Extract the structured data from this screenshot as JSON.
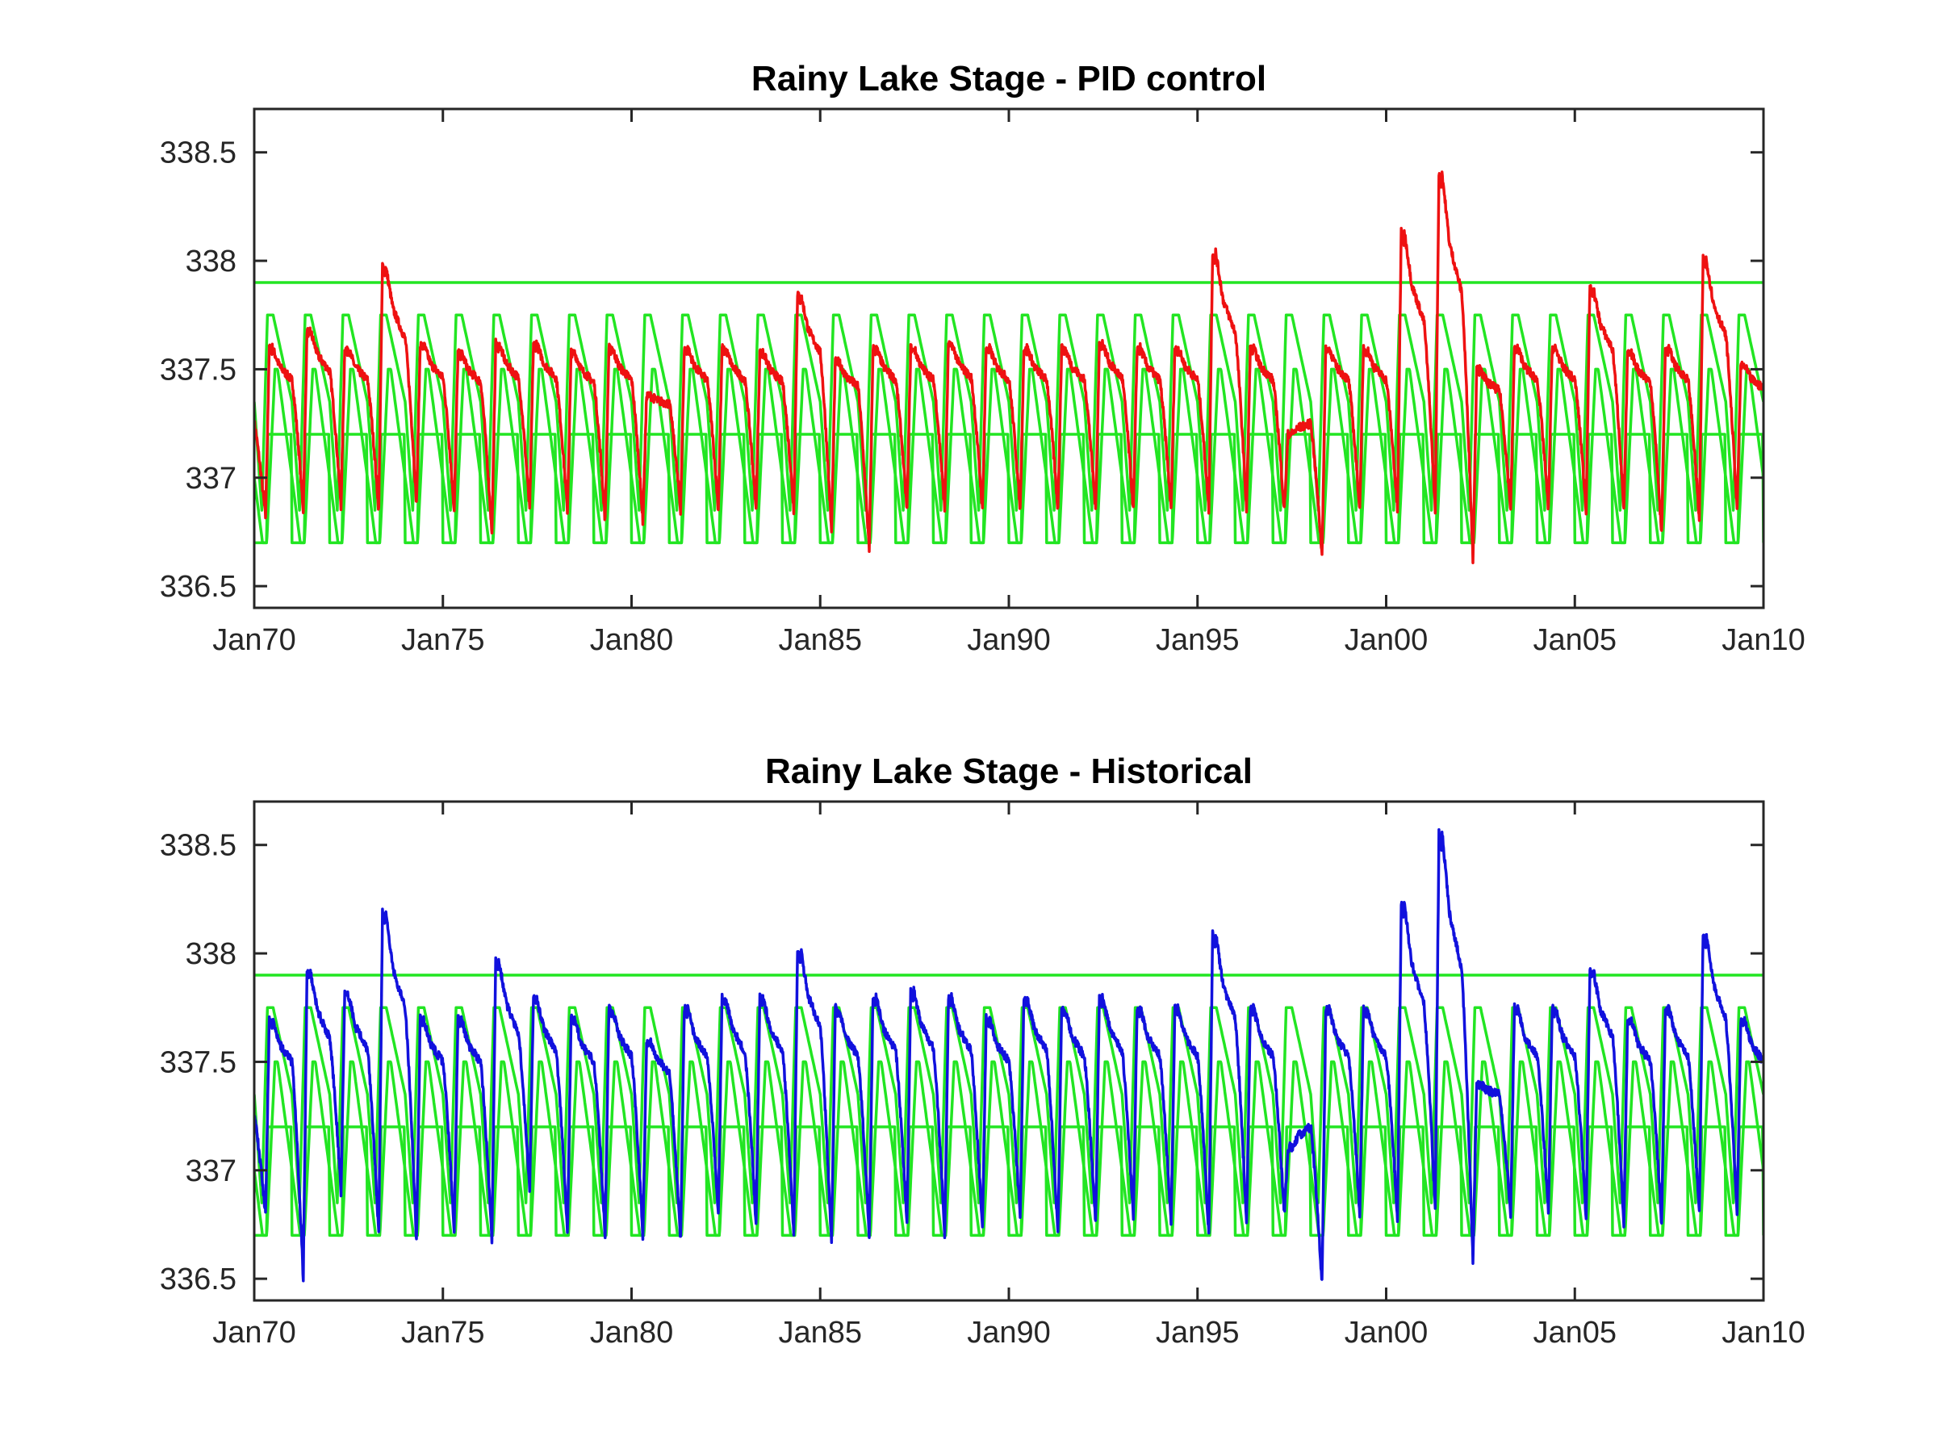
{
  "figure": {
    "background": "#ffffff",
    "axes_color": "#262626",
    "band_color": "#22e522"
  },
  "chart_data": [
    {
      "type": "line",
      "title": "Rainy Lake Stage - PID control",
      "xlabel": "",
      "ylabel": "",
      "x_range": [
        "1970-01-01",
        "2010-01-01"
      ],
      "ylim": [
        336.4,
        338.7
      ],
      "x_ticks": [
        "Jan70",
        "Jan75",
        "Jan80",
        "Jan85",
        "Jan90",
        "Jan95",
        "Jan00",
        "Jan05",
        "Jan10"
      ],
      "y_ticks": [
        "338.5",
        "338",
        "337.5",
        "337",
        "336.5"
      ],
      "grid": false,
      "legend": "none",
      "rule_curve": {
        "max_level": 337.9,
        "upper_peak": 337.75,
        "upper_trough": 336.85,
        "middle_peak": 337.5,
        "middle_trough": 336.7,
        "lower_peak": 337.2,
        "lower_trough": 336.7
      },
      "series": [
        {
          "color": "#ee1111",
          "annual_peaks": [
            337.6,
            337.68,
            337.6,
            337.98,
            337.62,
            337.58,
            337.62,
            337.62,
            337.58,
            337.6,
            337.38,
            337.6,
            337.6,
            337.58,
            337.85,
            337.54,
            337.6,
            337.6,
            337.62,
            337.6,
            337.6,
            337.6,
            337.62,
            337.6,
            337.6,
            338.04,
            337.6,
            337.2,
            337.6,
            337.6,
            338.14,
            338.41,
            337.5,
            337.6,
            337.6,
            337.88,
            337.58,
            337.6,
            338.01,
            337.52,
            337.4
          ],
          "annual_troughs": [
            336.82,
            336.85,
            336.87,
            336.85,
            336.88,
            336.85,
            336.74,
            336.85,
            336.85,
            336.8,
            336.8,
            336.85,
            336.85,
            336.85,
            336.85,
            336.75,
            336.66,
            336.85,
            336.85,
            336.85,
            336.85,
            336.85,
            336.85,
            336.85,
            336.85,
            336.85,
            336.85,
            336.85,
            336.64,
            336.85,
            336.85,
            336.85,
            336.62,
            336.85,
            336.85,
            336.85,
            336.85,
            336.74,
            336.8,
            336.85,
            336.85
          ]
        }
      ]
    },
    {
      "type": "line",
      "title": "Rainy Lake Stage - Historical",
      "xlabel": "",
      "ylabel": "",
      "x_range": [
        "1970-01-01",
        "2010-01-01"
      ],
      "ylim": [
        336.4,
        338.7
      ],
      "x_ticks": [
        "Jan70",
        "Jan75",
        "Jan80",
        "Jan85",
        "Jan90",
        "Jan95",
        "Jan00",
        "Jan05",
        "Jan10"
      ],
      "y_ticks": [
        "338.5",
        "338",
        "337.5",
        "337",
        "336.5"
      ],
      "grid": false,
      "legend": "none",
      "rule_curve": {
        "max_level": 337.9,
        "upper_peak": 337.75,
        "upper_trough": 336.85,
        "middle_peak": 337.5,
        "middle_trough": 336.7,
        "lower_peak": 337.2,
        "lower_trough": 336.7
      },
      "series": [
        {
          "color": "#1111dd",
          "annual_peaks": [
            337.7,
            337.92,
            337.82,
            338.19,
            337.7,
            337.7,
            337.97,
            337.8,
            337.7,
            337.75,
            337.6,
            337.75,
            337.8,
            337.8,
            338.02,
            337.75,
            337.8,
            337.83,
            337.8,
            337.7,
            337.8,
            337.75,
            337.8,
            337.75,
            337.75,
            338.09,
            337.75,
            337.1,
            337.75,
            337.75,
            338.23,
            338.56,
            337.4,
            337.75,
            337.75,
            337.93,
            337.7,
            337.75,
            338.09,
            337.7,
            337.5
          ],
          "annual_troughs": [
            336.8,
            336.5,
            336.9,
            336.7,
            336.67,
            336.72,
            336.68,
            336.9,
            336.72,
            336.7,
            336.7,
            336.68,
            336.8,
            336.75,
            336.7,
            336.66,
            336.7,
            336.75,
            336.7,
            336.72,
            336.78,
            336.7,
            336.75,
            336.78,
            336.75,
            336.7,
            336.75,
            336.8,
            336.48,
            336.8,
            336.78,
            336.82,
            336.58,
            336.8,
            336.8,
            336.78,
            336.75,
            336.75,
            336.8,
            336.8,
            336.8
          ]
        }
      ]
    }
  ]
}
